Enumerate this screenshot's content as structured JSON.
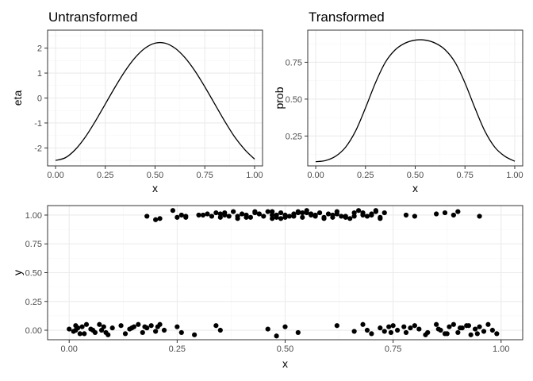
{
  "chart_data": [
    {
      "type": "line",
      "title": "Untransformed",
      "xlabel": "x",
      "ylabel": "eta",
      "xlim": [
        -0.04,
        1.04
      ],
      "ylim": [
        -2.72,
        2.72
      ],
      "x_ticks": [
        0,
        0.25,
        0.5,
        0.75,
        1
      ],
      "x_tick_labels": [
        "0.00",
        "0.25",
        "0.50",
        "0.75",
        "1.00"
      ],
      "y_ticks": [
        -2,
        -1,
        0,
        1,
        2
      ],
      "y_tick_labels": [
        "-2",
        "-1",
        "0",
        "1",
        "2"
      ],
      "grid": true,
      "series": [
        {
          "x": [
            0.0,
            0.05,
            0.1,
            0.15,
            0.2,
            0.25,
            0.3,
            0.35,
            0.4,
            0.45,
            0.5,
            0.55,
            0.6,
            0.65,
            0.7,
            0.75,
            0.8,
            0.85,
            0.9,
            0.95,
            1.0
          ],
          "values": [
            -2.5,
            -2.39,
            -2.06,
            -1.56,
            -0.93,
            -0.24,
            0.45,
            1.09,
            1.62,
            2.0,
            2.2,
            2.2,
            2.0,
            1.62,
            1.09,
            0.45,
            -0.24,
            -0.93,
            -1.56,
            -2.06,
            -2.45
          ]
        }
      ]
    },
    {
      "type": "line",
      "title": "Transformed",
      "xlabel": "x",
      "ylabel": "prob",
      "xlim": [
        -0.04,
        1.04
      ],
      "ylim": [
        0.0475,
        0.9675
      ],
      "x_ticks": [
        0,
        0.25,
        0.5,
        0.75,
        1
      ],
      "x_tick_labels": [
        "0.00",
        "0.25",
        "0.50",
        "0.75",
        "1.00"
      ],
      "y_ticks": [
        0.25,
        0.5,
        0.75
      ],
      "y_tick_labels": [
        "0.25",
        "0.50",
        "0.75"
      ],
      "grid": true,
      "series": [
        {
          "x": [
            0.0,
            0.05,
            0.1,
            0.15,
            0.2,
            0.25,
            0.3,
            0.35,
            0.4,
            0.45,
            0.5,
            0.55,
            0.6,
            0.65,
            0.7,
            0.75,
            0.8,
            0.85,
            0.9,
            0.95,
            1.0
          ],
          "values": [
            0.076,
            0.084,
            0.113,
            0.174,
            0.283,
            0.44,
            0.61,
            0.75,
            0.835,
            0.88,
            0.9,
            0.9,
            0.88,
            0.835,
            0.75,
            0.61,
            0.44,
            0.283,
            0.174,
            0.113,
            0.079
          ]
        }
      ]
    },
    {
      "type": "scatter",
      "title": "",
      "xlabel": "x",
      "ylabel": "y",
      "xlim": [
        -0.05,
        1.05
      ],
      "ylim": [
        -0.0825,
        1.0825
      ],
      "x_ticks": [
        0,
        0.25,
        0.5,
        0.75,
        1
      ],
      "x_tick_labels": [
        "0.00",
        "0.25",
        "0.50",
        "0.75",
        "1.00"
      ],
      "y_ticks": [
        0,
        0.25,
        0.5,
        0.75,
        1
      ],
      "y_tick_labels": [
        "0.00",
        "0.25",
        "0.50",
        "0.75",
        "1.00"
      ],
      "grid": true,
      "series": [
        {
          "x": [
            0.18,
            0.2,
            0.21,
            0.24,
            0.25,
            0.26,
            0.27,
            0.3,
            0.32,
            0.33,
            0.34,
            0.35,
            0.36,
            0.37,
            0.38,
            0.39,
            0.4,
            0.41,
            0.42,
            0.43,
            0.44,
            0.45,
            0.46,
            0.47,
            0.48,
            0.49,
            0.5,
            0.51,
            0.52,
            0.53,
            0.54,
            0.55,
            0.56,
            0.57,
            0.58,
            0.59,
            0.6,
            0.61,
            0.62,
            0.63,
            0.64,
            0.65,
            0.66,
            0.67,
            0.68,
            0.69,
            0.7,
            0.71,
            0.72,
            0.73,
            0.78,
            0.8,
            0.85,
            0.87,
            0.89,
            0.9,
            0.95,
            0.27,
            0.31,
            0.36,
            0.41,
            0.44,
            0.47,
            0.49,
            0.52,
            0.55,
            0.57,
            0.59,
            0.62,
            0.64,
            0.68,
            0.7,
            0.72,
            0.35,
            0.39,
            0.43,
            0.48,
            0.5,
            0.53,
            0.56,
            0.66,
            0.71,
            0.47,
            0.54,
            0.61
          ],
          "values": [
            0.99,
            0.96,
            0.97,
            1.04,
            0.98,
            1.0,
            0.99,
            1.0,
            1.01,
            0.99,
            1.02,
            0.98,
            1.0,
            0.99,
            1.03,
            0.97,
            1.01,
            1.0,
            0.98,
            1.02,
            1.01,
            0.99,
            1.03,
            1.0,
            0.98,
            1.02,
            1.0,
            0.99,
            1.01,
            1.03,
            0.98,
            1.04,
            1.0,
            0.99,
            1.02,
            0.97,
            1.01,
            1.0,
            1.03,
            0.99,
            0.98,
            0.97,
            1.02,
            1.04,
            1.0,
            0.99,
            1.01,
            1.03,
            0.98,
            1.02,
            1.0,
            0.99,
            1.01,
            1.02,
            1.0,
            1.03,
            0.99,
            0.98,
            1.0,
            1.02,
            0.98,
            1.01,
            1.03,
            0.97,
            0.99,
            1.02,
            1.0,
            0.98,
            1.01,
            0.99,
            1.02,
            1.0,
            0.97,
            1.01,
            0.99,
            1.03,
            1.0,
            0.98,
            1.02,
            1.01,
            0.99,
            1.04,
            0.97,
            1.02,
            0.98
          ]
        },
        {
          "x": [
            0.0,
            0.01,
            0.015,
            0.02,
            0.025,
            0.03,
            0.04,
            0.05,
            0.06,
            0.07,
            0.075,
            0.08,
            0.09,
            0.1,
            0.12,
            0.13,
            0.14,
            0.15,
            0.16,
            0.17,
            0.18,
            0.19,
            0.2,
            0.21,
            0.22,
            0.25,
            0.26,
            0.29,
            0.34,
            0.35,
            0.46,
            0.48,
            0.5,
            0.53,
            0.62,
            0.66,
            0.68,
            0.69,
            0.7,
            0.72,
            0.73,
            0.74,
            0.75,
            0.76,
            0.78,
            0.79,
            0.8,
            0.81,
            0.83,
            0.85,
            0.86,
            0.87,
            0.88,
            0.89,
            0.9,
            0.91,
            0.92,
            0.93,
            0.94,
            0.95,
            0.96,
            0.97,
            0.98,
            0.99,
            0.015,
            0.035,
            0.055,
            0.085,
            0.145,
            0.175,
            0.205,
            0.745,
            0.775,
            0.825,
            0.855,
            0.875,
            0.905,
            0.925,
            0.945
          ],
          "values": [
            0.01,
            -0.01,
            0.04,
            0.02,
            -0.03,
            0.03,
            0.05,
            0.01,
            -0.02,
            0.05,
            0.0,
            0.03,
            -0.04,
            0.02,
            0.04,
            -0.03,
            0.01,
            0.03,
            0.05,
            -0.02,
            0.02,
            0.04,
            -0.01,
            0.05,
            0.0,
            0.03,
            -0.02,
            -0.04,
            0.04,
            0.0,
            0.01,
            -0.05,
            0.03,
            -0.02,
            0.04,
            -0.01,
            0.05,
            0.0,
            -0.03,
            0.02,
            -0.01,
            0.03,
            0.04,
            0.0,
            -0.02,
            0.02,
            0.04,
            0.01,
            -0.02,
            0.05,
            0.0,
            -0.03,
            0.03,
            0.05,
            -0.02,
            0.02,
            0.04,
            -0.04,
            0.01,
            0.03,
            -0.01,
            0.05,
            0.0,
            -0.03,
            0.0,
            -0.03,
            0.0,
            -0.02,
            0.02,
            0.03,
            0.03,
            -0.02,
            0.03,
            -0.04,
            0.01,
            -0.03,
            0.02,
            0.04,
            -0.03
          ]
        }
      ]
    }
  ]
}
